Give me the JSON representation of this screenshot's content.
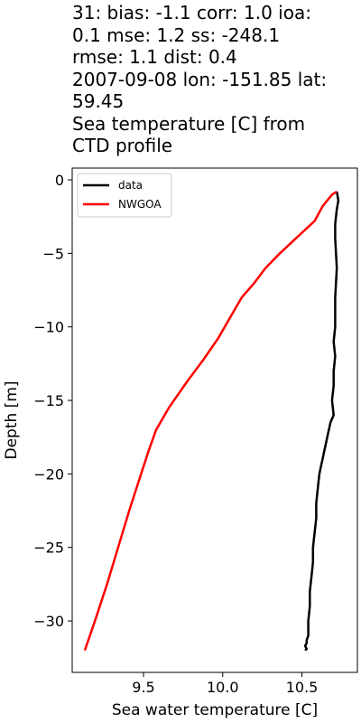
{
  "chart_data": {
    "type": "line",
    "title_lines": [
      "31: bias: -1.1  corr: 1.0  ioa:",
      "0.1  mse: 1.2  ss: -248.1",
      "rmse: 1.1  dist: 0.4",
      "2007-09-08 lon: -151.85 lat:",
      "59.45",
      "Sea temperature [C] from",
      "CTD profile"
    ],
    "xlabel": "Sea water temperature [C]",
    "ylabel": "Depth [m]",
    "xlim": [
      9.05,
      10.85
    ],
    "ylim": [
      -33.5,
      0.8
    ],
    "xticks": [
      9.5,
      10.0,
      10.5
    ],
    "xtick_labels": [
      "9.5",
      "10.0",
      "10.5"
    ],
    "yticks": [
      0,
      -5,
      -10,
      -15,
      -20,
      -25,
      -30
    ],
    "ytick_labels": [
      "0",
      "−5",
      "−10",
      "−15",
      "−20",
      "−25",
      "−30"
    ],
    "legend_position": "upper-left",
    "series": [
      {
        "name": "data",
        "color": "#000000",
        "x": [
          10.72,
          10.73,
          10.72,
          10.71,
          10.71,
          10.72,
          10.71,
          10.71,
          10.7,
          10.71,
          10.7,
          10.7,
          10.69,
          10.7,
          10.68,
          10.67,
          10.66,
          10.65,
          10.64,
          10.63,
          10.62,
          10.61,
          10.6,
          10.59,
          10.59,
          10.58,
          10.57,
          10.57,
          10.56,
          10.55,
          10.55,
          10.54,
          10.54,
          10.54,
          10.53,
          10.53,
          10.52,
          10.53,
          10.52
        ],
        "y": [
          -0.8,
          -1.4,
          -2.0,
          -3.0,
          -4.0,
          -6.0,
          -8.0,
          -10.0,
          -11.0,
          -12.0,
          -13.0,
          -14.0,
          -15.0,
          -16.0,
          -16.5,
          -17.0,
          -17.5,
          -18.0,
          -18.5,
          -19.0,
          -19.5,
          -20.0,
          -21.0,
          -22.0,
          -23.0,
          -24.0,
          -25.0,
          -26.0,
          -27.0,
          -28.0,
          -29.0,
          -30.0,
          -30.5,
          -31.0,
          -31.3,
          -31.5,
          -31.7,
          -31.9,
          -32.0
        ]
      },
      {
        "name": "NWGOA",
        "color": "#ff0000",
        "x": [
          10.72,
          10.69,
          10.63,
          10.58,
          10.48,
          10.36,
          10.27,
          10.2,
          10.12,
          10.05,
          9.97,
          9.88,
          9.77,
          9.66,
          9.58,
          9.53,
          9.47,
          9.41,
          9.34,
          9.27,
          9.2,
          9.13
        ],
        "y": [
          -0.8,
          -1.0,
          -1.8,
          -2.8,
          -3.8,
          -5.0,
          -6.0,
          -7.0,
          -8.0,
          -9.3,
          -10.8,
          -12.2,
          -13.8,
          -15.5,
          -17.0,
          -18.5,
          -20.5,
          -22.5,
          -25.0,
          -27.5,
          -29.8,
          -32.0
        ]
      }
    ]
  }
}
